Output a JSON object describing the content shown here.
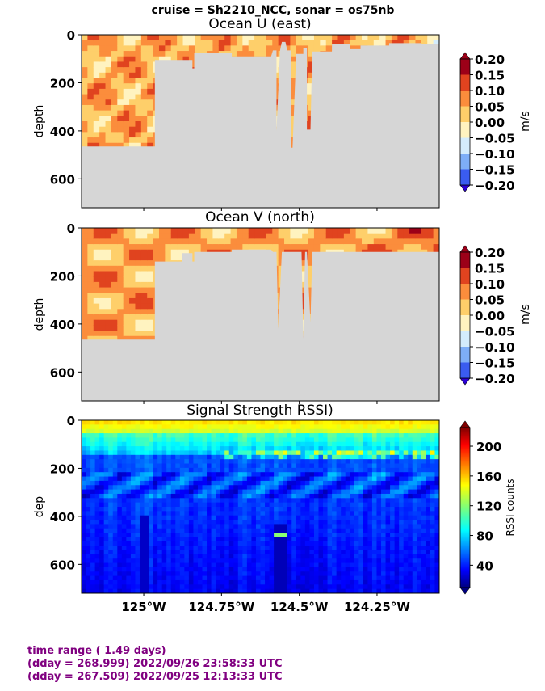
{
  "suptitle": "cruise = Sh2210_NCC,  sonar = os75nb",
  "footer": {
    "line1": "time range ( 1.49 days)",
    "line2": "(dday = 268.999) 2022/09/26 23:58:33 UTC",
    "line3": "(dday = 267.509) 2022/09/25 12:13:33 UTC"
  },
  "colors": {
    "no_data": "#d6d6d6",
    "footer_text": "#800080"
  },
  "chart_data": [
    {
      "type": "heatmap",
      "title": "Ocean U (east)",
      "ylabel": "depth",
      "colorbar_label": "m/s",
      "colorbar_ticks": [
        "0.20",
        "0.15",
        "0.10",
        "0.05",
        "0.00",
        "−0.05",
        "−0.10",
        "−0.15",
        "−0.20"
      ],
      "levels": [
        -0.2,
        -0.15,
        -0.1,
        -0.05,
        0.0,
        0.05,
        0.1,
        0.15,
        0.2
      ],
      "colormap": [
        "#2b00d6",
        "#3a5cf0",
        "#7eaef7",
        "#d4ecfc",
        "#fff3c0",
        "#fecf6a",
        "#fb8d3c",
        "#e0431f",
        "#9c0018"
      ],
      "xlim": [
        -125.2,
        -124.05
      ],
      "ylim": [
        720,
        0
      ],
      "yticks": [
        0,
        200,
        400,
        600
      ],
      "x_ticklabels_shown": false
    },
    {
      "type": "heatmap",
      "title": "Ocean V (north)",
      "ylabel": "depth",
      "colorbar_label": "m/s",
      "colorbar_ticks": [
        "0.20",
        "0.15",
        "0.10",
        "0.05",
        "0.00",
        "−0.05",
        "−0.10",
        "−0.15",
        "−0.20"
      ],
      "levels": [
        -0.2,
        -0.15,
        -0.1,
        -0.05,
        0.0,
        0.05,
        0.1,
        0.15,
        0.2
      ],
      "colormap": [
        "#2b00d6",
        "#3a5cf0",
        "#7eaef7",
        "#d4ecfc",
        "#fff3c0",
        "#fecf6a",
        "#fb8d3c",
        "#e0431f",
        "#9c0018"
      ],
      "xlim": [
        -125.2,
        -124.05
      ],
      "ylim": [
        720,
        0
      ],
      "yticks": [
        0,
        200,
        400,
        600
      ],
      "x_ticklabels_shown": false
    },
    {
      "type": "heatmap",
      "title": "Signal Strength RSSI)",
      "ylabel": "dep",
      "colorbar_label": "RSSI counts",
      "colorbar_ticks": [
        "200",
        "160",
        "120",
        "80",
        "40"
      ],
      "colormap": "jet",
      "range": [
        10,
        225
      ],
      "xlim": [
        -125.2,
        -124.05
      ],
      "ylim": [
        720,
        0
      ],
      "yticks": [
        0,
        200,
        400,
        600
      ],
      "xticks": [
        -125.0,
        -124.75,
        -124.5,
        -124.25
      ],
      "xticklabels": [
        "125°W",
        "124.75°W",
        "124.5°W",
        "124.25°W"
      ],
      "x_ticklabels_shown": true
    }
  ]
}
